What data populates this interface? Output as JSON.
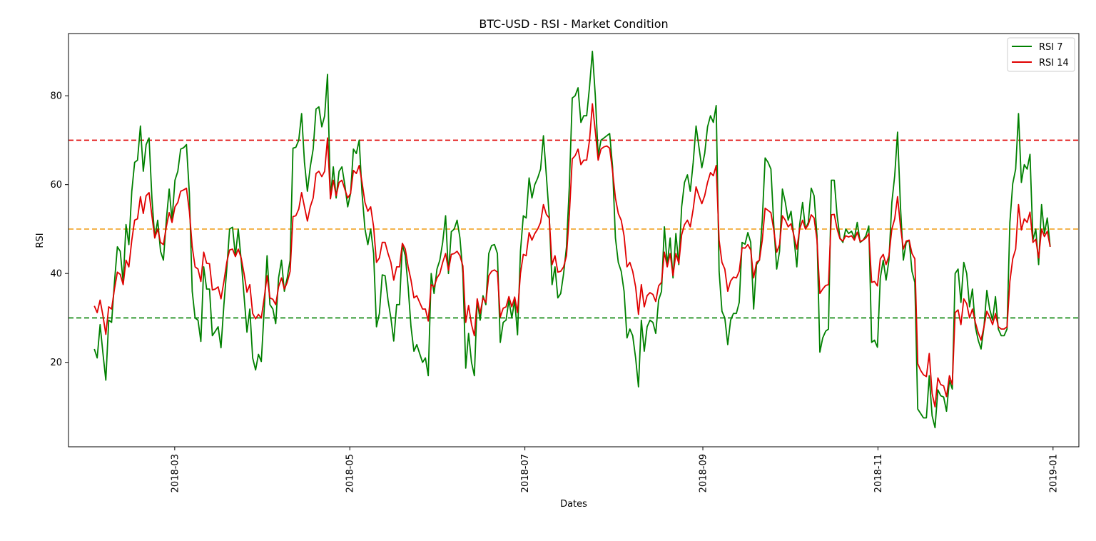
{
  "chart_data": {
    "type": "line",
    "title": "BTC-USD - RSI - Market Condition",
    "xlabel": "Dates",
    "ylabel": "RSI",
    "x_range": [
      "2018-01-23",
      "2019-01-10"
    ],
    "ylim": [
      1.0,
      94.0
    ],
    "x_ticks": [
      "2018-03",
      "2018-05",
      "2018-07",
      "2018-09",
      "2018-11",
      "2019-01"
    ],
    "y_ticks": [
      20,
      40,
      60,
      80
    ],
    "grid": false,
    "legend": "top-right",
    "start_date": "2018-02-01",
    "reference_lines": [
      {
        "y": 70,
        "color": "#e00000",
        "style": "dashed"
      },
      {
        "y": 50,
        "color": "#f0a020",
        "style": "dashed"
      },
      {
        "y": 30,
        "color": "#008000",
        "style": "dashed"
      }
    ],
    "series": [
      {
        "name": "RSI 7",
        "color": "#008000",
        "values": [
          23,
          21,
          28.5,
          22,
          16,
          29.5,
          29,
          38,
          46,
          45,
          38,
          51,
          46.5,
          58.5,
          65,
          65.5,
          73.2,
          63,
          69,
          70.5,
          57,
          48,
          52,
          45,
          43,
          52,
          59,
          52,
          61,
          63,
          68,
          68.3,
          69,
          58,
          36,
          30,
          29.5,
          24.7,
          41.5,
          36.5,
          36.5,
          26,
          27,
          28,
          23.3,
          33,
          41,
          50,
          50.4,
          44,
          50,
          43,
          35,
          26.8,
          32,
          21,
          18.3,
          21.8,
          20.2,
          32,
          44,
          33,
          32,
          28.7,
          39,
          43,
          36,
          39,
          43,
          68.2,
          68.4,
          70,
          76,
          65,
          58.5,
          64,
          68,
          77,
          77.5,
          73,
          75.5,
          84.8,
          57,
          64,
          57,
          63,
          64,
          60,
          55,
          58,
          68,
          67,
          70,
          58,
          50,
          46.5,
          50,
          44.5,
          28,
          31,
          39.7,
          39.5,
          34,
          30,
          24.8,
          33,
          33,
          46.5,
          44,
          37,
          28,
          22.5,
          24,
          22,
          20,
          21,
          17,
          40,
          35.5,
          41,
          43,
          47,
          53,
          40,
          49.4,
          50,
          52,
          48,
          40,
          18.7,
          26.5,
          20,
          17,
          34,
          29.5,
          35,
          33,
          44.5,
          46.3,
          46.5,
          44.5,
          24.5,
          29,
          29.5,
          34,
          30,
          34,
          26.2,
          45,
          53,
          52.5,
          61.5,
          57,
          60,
          61.5,
          63.5,
          71,
          62,
          53,
          37.5,
          41.5,
          34.5,
          35.5,
          40,
          46,
          60,
          79.5,
          80,
          81.8,
          74,
          75.5,
          75.5,
          82,
          90,
          80,
          66.5,
          70,
          70.5,
          71,
          71.5,
          64,
          48,
          42.5,
          40.5,
          36,
          25.5,
          27.5,
          26,
          21,
          14.5,
          29.5,
          22.5,
          28,
          29.5,
          29,
          26.5,
          34,
          36,
          50.5,
          42,
          48,
          39,
          49,
          42,
          55,
          60.5,
          62.2,
          58.5,
          65,
          73.2,
          68.5,
          63.8,
          67,
          73,
          75.5,
          74,
          77.8,
          40.5,
          31.5,
          30,
          24,
          29.5,
          31,
          31,
          33.5,
          47,
          46.6,
          49.2,
          47,
          32,
          42,
          43,
          52,
          66,
          65,
          63.5,
          51,
          41,
          45,
          59,
          56,
          52,
          54,
          48,
          41.5,
          51,
          56,
          50,
          51.5,
          59.2,
          57.5,
          48.5,
          22.3,
          25.5,
          27,
          27.5,
          61,
          61,
          53,
          48,
          47,
          50,
          49,
          49.5,
          48,
          51.5,
          47,
          47.5,
          48.5,
          50.7,
          24.5,
          25,
          23.4,
          39,
          43,
          38.5,
          43,
          56,
          62,
          71.8,
          55,
          43,
          47,
          47.5,
          40.5,
          38,
          9.5,
          8.5,
          7.5,
          7.5,
          17,
          8,
          5.3,
          13.8,
          12.5,
          12.2,
          9,
          16,
          14,
          40,
          41,
          33.5,
          42.5,
          40,
          32.5,
          36.5,
          28,
          25,
          23,
          28,
          36.2,
          32,
          29.5,
          34.8,
          27.5,
          26,
          26,
          27.5,
          51.5,
          60.2,
          63.5,
          76,
          60.5,
          64.5,
          63.5,
          66.8,
          47.5,
          50,
          42,
          55.5,
          49,
          52.5,
          46
        ]
      },
      {
        "name": "RSI 14",
        "color": "#e00000",
        "values": [
          32.7,
          31.2,
          34,
          30.5,
          26.3,
          32.5,
          32,
          36.5,
          40.3,
          39.8,
          37.5,
          43,
          41.5,
          47.5,
          52,
          52.3,
          57.3,
          53.5,
          57.5,
          58.2,
          53,
          48,
          50,
          47,
          46.5,
          50.5,
          53.7,
          51.5,
          55,
          56,
          58.5,
          58.8,
          59.2,
          54,
          46,
          41.5,
          41,
          38.2,
          44.8,
          42.3,
          42.2,
          36.3,
          36.5,
          37,
          34.3,
          38.2,
          42.5,
          45.3,
          45.5,
          43.8,
          45.5,
          43.5,
          40,
          35.8,
          37.5,
          31,
          29.8,
          30.8,
          30,
          34.5,
          39.5,
          34.5,
          34.2,
          33,
          37,
          39,
          36.5,
          38,
          40.5,
          52.8,
          53,
          54.5,
          58.2,
          55,
          51.8,
          55,
          57,
          62.5,
          63,
          61.8,
          63,
          70.5,
          56.8,
          61,
          57.5,
          60.5,
          61,
          59,
          57,
          58,
          63.2,
          62.5,
          64.3,
          60.5,
          56,
          54,
          55,
          50.5,
          42.5,
          43.5,
          47,
          47,
          44.5,
          42.5,
          38.5,
          41.5,
          41.5,
          46.8,
          45.5,
          41.5,
          38.5,
          34.5,
          35,
          33.5,
          32,
          32,
          29.3,
          37.5,
          37,
          39,
          40,
          42.5,
          44.5,
          40.7,
          44.3,
          44.5,
          45,
          44,
          41.7,
          29,
          32.8,
          28.5,
          26,
          34.3,
          31,
          34.5,
          33.5,
          39.5,
          40.5,
          40.8,
          40.3,
          30.2,
          32.2,
          32.5,
          34.8,
          32.5,
          34.7,
          31.2,
          40,
          44.3,
          44,
          49.2,
          47.5,
          49,
          50,
          51.5,
          55.5,
          53.3,
          52.5,
          42,
          44,
          40.3,
          40.5,
          41.5,
          44,
          53.5,
          65.8,
          66.5,
          68,
          64.5,
          65.5,
          65.5,
          70,
          78.2,
          72,
          65.5,
          68,
          68.5,
          68.7,
          68.2,
          63,
          57,
          53.5,
          52,
          48.5,
          41.5,
          42.5,
          40.5,
          37,
          30.8,
          37.5,
          32.5,
          35,
          35.7,
          35.3,
          33.7,
          37.2,
          38,
          44.8,
          41.5,
          44.5,
          39.5,
          44.5,
          42.3,
          48.7,
          51,
          52,
          50.5,
          54.5,
          59.5,
          57.5,
          55.7,
          57.5,
          60.5,
          62.7,
          62,
          64.3,
          47.5,
          42.5,
          41,
          36,
          38.3,
          39.2,
          39,
          40.5,
          45.8,
          45.7,
          46.5,
          45.3,
          39,
          42.5,
          43,
          47.5,
          54.7,
          54.2,
          53.7,
          49.8,
          44.8,
          46.5,
          53,
          52,
          50.5,
          51.2,
          48.5,
          45.5,
          50,
          52,
          50,
          51,
          53.2,
          52.5,
          47.5,
          35.5,
          36.5,
          37.3,
          37.5,
          53.2,
          53.3,
          50,
          47.8,
          47.3,
          48.5,
          48.2,
          48.5,
          47.5,
          49.3,
          47.2,
          47.5,
          48,
          49,
          38,
          38.2,
          37.2,
          43.3,
          44.3,
          42,
          44,
          50,
          52.3,
          57.3,
          50.5,
          45.5,
          47.3,
          47.5,
          44.5,
          43.3,
          19.7,
          18.2,
          17.2,
          16.8,
          22,
          13,
          10,
          16.5,
          15,
          14.7,
          12.3,
          17,
          15,
          31.2,
          31.8,
          28.5,
          34.3,
          33.2,
          30,
          32,
          29,
          26.7,
          25,
          28,
          31.5,
          30.2,
          28.5,
          31,
          28,
          27.5,
          27.5,
          28,
          38.2,
          43.3,
          45.5,
          55.5,
          49.8,
          52.3,
          51.5,
          53.8,
          47,
          47.7,
          43.5,
          50,
          48.3,
          49.5,
          46
        ]
      }
    ]
  }
}
